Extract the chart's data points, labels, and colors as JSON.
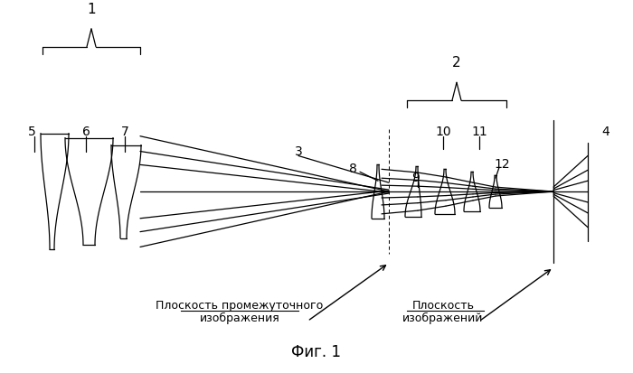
{
  "bg_color": "#ffffff",
  "line_color": "#000000",
  "fig_width": 7.0,
  "fig_height": 4.13,
  "dpi": 100,
  "title": "Фиг. 1",
  "label1": "1",
  "label2": "2",
  "label3": "3",
  "label4": "4",
  "label5": "5",
  "label6": "6",
  "label7": "7",
  "label8": "8",
  "label9": "9",
  "label10": "10",
  "label11": "11",
  "label12": "12",
  "text_intermediate": "Плоскость промежуточного",
  "text_intermediate2": "изображения",
  "text_image": "Плоскость",
  "text_image2": "изображений"
}
